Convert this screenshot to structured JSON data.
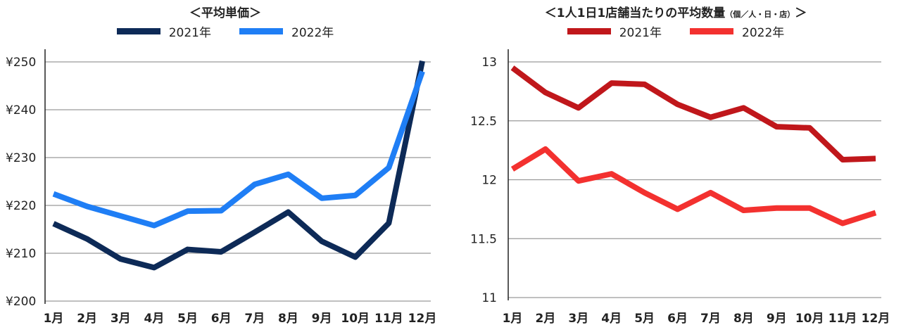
{
  "chart_data": [
    {
      "type": "line",
      "title": "＜平均単価＞",
      "categories": [
        "1月",
        "2月",
        "3月",
        "4月",
        "5月",
        "6月",
        "7月",
        "8月",
        "9月",
        "10月",
        "11月",
        "12月"
      ],
      "series": [
        {
          "name": "2021年",
          "color": "#0d2a57",
          "values": [
            216.2,
            213.0,
            208.8,
            207.0,
            210.8,
            210.3,
            214.4,
            218.6,
            212.5,
            209.2,
            216.3,
            250.2
          ]
        },
        {
          "name": "2022年",
          "color": "#1f7ef5",
          "values": [
            222.4,
            219.8,
            217.8,
            215.8,
            218.8,
            218.9,
            224.4,
            226.5,
            221.5,
            222.1,
            227.9,
            248.0
          ]
        }
      ],
      "ylim": [
        200,
        250
      ],
      "yticks": [
        200,
        210,
        220,
        230,
        240,
        250
      ],
      "ytick_labels": [
        "¥200",
        "¥210",
        "¥220",
        "¥230",
        "¥240",
        "¥250"
      ],
      "grid": true,
      "legend": "top"
    },
    {
      "type": "line",
      "title": "＜1人1日1店舗当たりの平均数量",
      "title_sub": "（個／人・日・店）",
      "title_end": "＞",
      "categories": [
        "1月",
        "2月",
        "3月",
        "4月",
        "5月",
        "6月",
        "7月",
        "8月",
        "9月",
        "10月",
        "11月",
        "12月"
      ],
      "series": [
        {
          "name": "2021年",
          "color": "#c0171b",
          "values": [
            12.95,
            12.74,
            12.61,
            12.82,
            12.81,
            12.64,
            12.53,
            12.61,
            12.45,
            12.44,
            12.17,
            12.18
          ]
        },
        {
          "name": "2022年",
          "color": "#f3312f",
          "values": [
            12.09,
            12.26,
            11.99,
            12.05,
            11.89,
            11.75,
            11.89,
            11.74,
            11.76,
            11.76,
            11.63,
            11.72
          ]
        }
      ],
      "ylim": [
        11,
        13
      ],
      "yticks": [
        11,
        11.5,
        12,
        12.5,
        13
      ],
      "ytick_labels": [
        "11",
        "11.5",
        "12",
        "12.5",
        "13"
      ],
      "grid": true,
      "legend": "top"
    }
  ]
}
